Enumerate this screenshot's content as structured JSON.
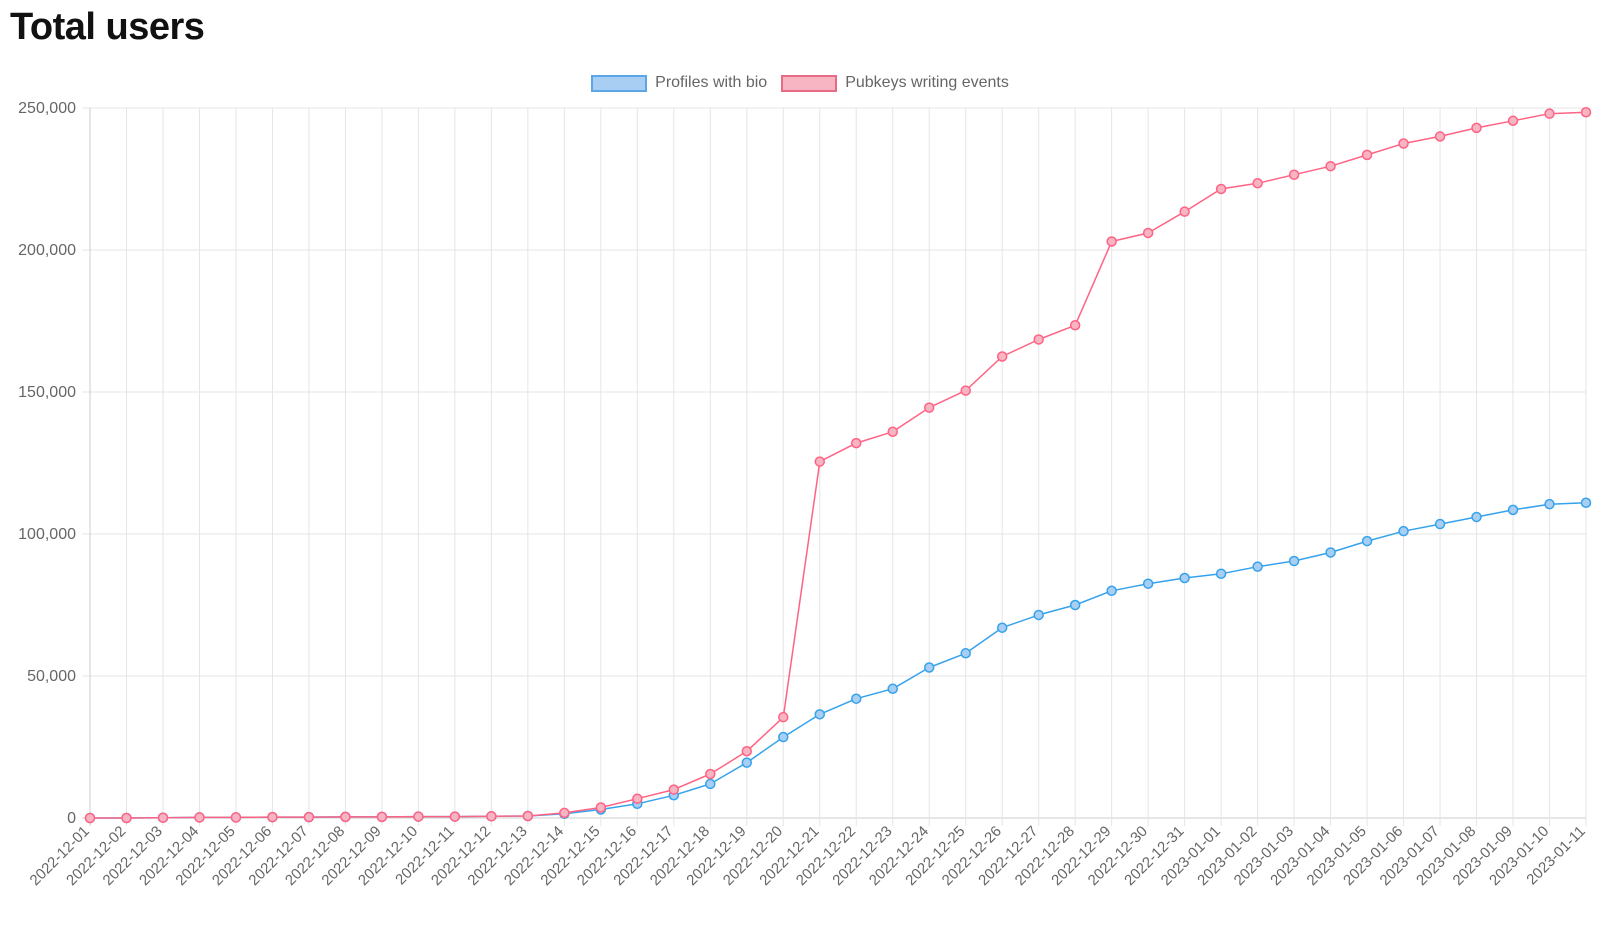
{
  "page": {
    "title": "Total users"
  },
  "chart_data": {
    "type": "line",
    "title": "",
    "xlabel": "",
    "ylabel": "",
    "ylim": [
      0,
      250000
    ],
    "yticks": [
      "0",
      "50,000",
      "100,000",
      "150,000",
      "200,000",
      "250,000"
    ],
    "grid": true,
    "legend_position": "top-center",
    "categories": [
      "2022-12-01",
      "2022-12-02",
      "2022-12-03",
      "2022-12-04",
      "2022-12-05",
      "2022-12-06",
      "2022-12-07",
      "2022-12-08",
      "2022-12-09",
      "2022-12-10",
      "2022-12-11",
      "2022-12-12",
      "2022-12-13",
      "2022-12-14",
      "2022-12-15",
      "2022-12-16",
      "2022-12-17",
      "2022-12-18",
      "2022-12-19",
      "2022-12-20",
      "2022-12-21",
      "2022-12-22",
      "2022-12-23",
      "2022-12-24",
      "2022-12-25",
      "2022-12-26",
      "2022-12-27",
      "2022-12-28",
      "2022-12-29",
      "2022-12-30",
      "2022-12-31",
      "2023-01-01",
      "2023-01-02",
      "2023-01-03",
      "2023-01-04",
      "2023-01-05",
      "2023-01-06",
      "2023-01-07",
      "2023-01-08",
      "2023-01-09",
      "2023-01-10",
      "2023-01-11"
    ],
    "series": [
      {
        "name": "Profiles with bio",
        "color": "#36a2eb",
        "fill": "#a8cff3",
        "values": [
          0,
          0,
          100,
          200,
          200,
          300,
          300,
          400,
          400,
          500,
          500,
          600,
          700,
          1500,
          3000,
          5000,
          8000,
          12000,
          19500,
          28500,
          36500,
          42000,
          45500,
          53000,
          58000,
          67000,
          71500,
          75000,
          80000,
          82500,
          84500,
          86000,
          88500,
          90500,
          93500,
          97500,
          101000,
          103500,
          106000,
          108500,
          110500,
          111000
        ]
      },
      {
        "name": "Pubkeys writing events",
        "color": "#ff6384",
        "fill": "#f7b4c2",
        "values": [
          0,
          0,
          100,
          200,
          200,
          300,
          300,
          400,
          400,
          500,
          500,
          600,
          700,
          1800,
          3700,
          6800,
          10000,
          15500,
          23500,
          35500,
          125500,
          132000,
          136000,
          144500,
          150500,
          162500,
          168500,
          173500,
          203000,
          206000,
          213500,
          221500,
          223500,
          226500,
          229500,
          233500,
          237500,
          240000,
          243000,
          245500,
          248000,
          248500
        ]
      }
    ]
  }
}
